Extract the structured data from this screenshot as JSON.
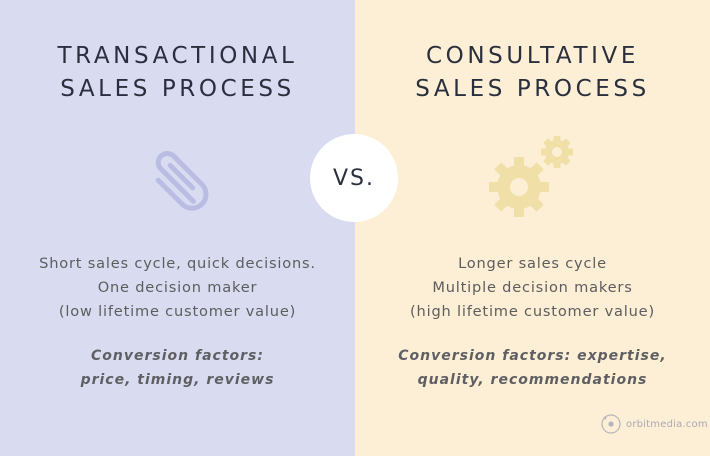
{
  "left": {
    "title_line1": "TRANSACTIONAL",
    "title_line2": "SALES PROCESS",
    "desc_line1": "Short sales cycle, quick decisions.",
    "desc_line2": "One decision maker",
    "desc_line3": "(low lifetime customer value)",
    "factors_line1": "Conversion factors:",
    "factors_line2": "price, timing, reviews",
    "icon": "paperclip-icon"
  },
  "center": {
    "vs_label": "VS."
  },
  "right": {
    "title_line1": "CONSULTATIVE",
    "title_line2": "SALES PROCESS",
    "desc_line1": "Longer sales cycle",
    "desc_line2": "Multiple decision makers",
    "desc_line3": "(high lifetime customer value)",
    "factors_line1": "Conversion factors: expertise,",
    "factors_line2": "quality, recommendations",
    "icon": "gears-icon"
  },
  "branding": {
    "text": "orbitmedia.com"
  },
  "colors": {
    "left_bg": "#d9dcf1",
    "right_bg": "#fcefd6",
    "paperclip": "#b9bde2",
    "gears": "#f0dfa6"
  }
}
